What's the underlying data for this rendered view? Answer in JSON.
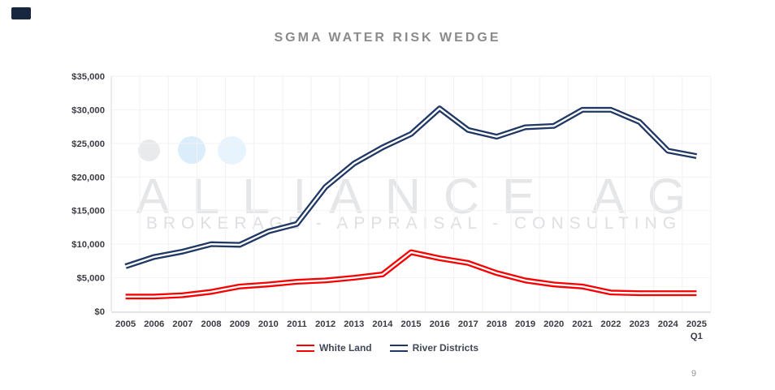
{
  "slide": {
    "page_number": "9",
    "accent_color": "#17273f"
  },
  "title": "SGMA WATER RISK WEDGE",
  "watermark": {
    "name": "ALLIANCE AG",
    "tagline": "BROKERAGE - APPRAISAL - CONSULTING",
    "dots": [
      {
        "color": "#e8eaec"
      },
      {
        "color": "#dbedfa"
      },
      {
        "color": "#e8f4fd"
      }
    ]
  },
  "chart_data": {
    "type": "line",
    "title": "SGMA WATER RISK WEDGE",
    "categories": [
      "2005",
      "2006",
      "2007",
      "2008",
      "2009",
      "2010",
      "2011",
      "2012",
      "2013",
      "2014",
      "2015",
      "2016",
      "2017",
      "2018",
      "2019",
      "2020",
      "2021",
      "2022",
      "2023",
      "2024",
      "2025 Q1"
    ],
    "series": [
      {
        "name": "White Land",
        "color": "#f60100",
        "values": [
          2200,
          2200,
          2400,
          2900,
          3700,
          4000,
          4400,
          4600,
          5000,
          5500,
          8800,
          7900,
          7200,
          5700,
          4600,
          4000,
          3700,
          2800,
          2700,
          2700,
          2700
        ]
      },
      {
        "name": "River Districts",
        "color": "#1f3864",
        "values": [
          6700,
          8100,
          8900,
          10000,
          9900,
          11900,
          13000,
          18500,
          22000,
          24400,
          26400,
          30200,
          27000,
          26000,
          27400,
          27600,
          30000,
          30000,
          28200,
          23900,
          23100
        ]
      }
    ],
    "ylim": [
      0,
      35000
    ],
    "y_ticks": [
      "$35,000",
      "$30,000",
      "$25,000",
      "$20,000",
      "$15,000",
      "$10,000",
      "$5,000",
      "$0"
    ],
    "y_tick_values": [
      35000,
      30000,
      25000,
      20000,
      15000,
      10000,
      5000,
      0
    ],
    "xlabel": "",
    "ylabel": "",
    "grid": true,
    "line_style": "double-line-white-core",
    "legend_position": "bottom",
    "colors": {
      "grid": "#f2f2f4",
      "y_axis_line": "#d9d9d9",
      "x_axis_line": "#e4e4e6",
      "tick_text": "#3c3c44",
      "title_text": "#8b8b8b"
    }
  }
}
